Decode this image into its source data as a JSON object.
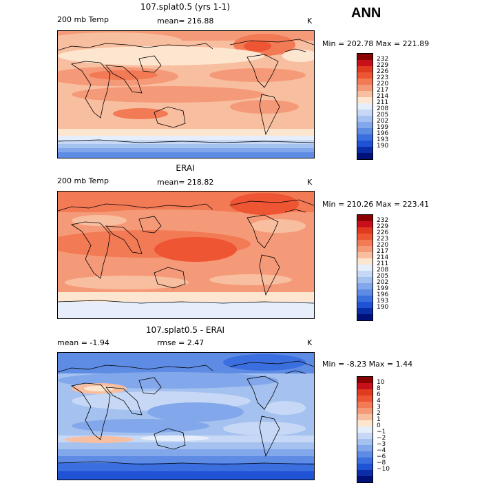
{
  "season": "ANN",
  "panels": [
    {
      "title": "107.splat0.5 (yrs 1-1)",
      "left_label": "200 mb Temp",
      "mid_label": "mean= 216.88",
      "right_label": "K",
      "minmax": "Min = 202.78 Max = 221.89",
      "colorbar_labels": [
        "232",
        "229",
        "226",
        "223",
        "220",
        "217",
        "214",
        "211",
        "208",
        "205",
        "202",
        "199",
        "196",
        "193",
        "190"
      ],
      "colors": [
        "#8b0000",
        "#c8101a",
        "#e03a21",
        "#ee5533",
        "#f27a55",
        "#f59a78",
        "#f8bea0",
        "#fde6d0",
        "#e6eefb",
        "#c6d8f5",
        "#a4c1ef",
        "#82a7ea",
        "#5e8be4",
        "#3b6fe0",
        "#1f52d5",
        "#0b2ea8",
        "#00117a"
      ]
    },
    {
      "title": "ERAI",
      "left_label": "200 mb Temp",
      "mid_label": "mean= 218.82",
      "right_label": "K",
      "minmax": "Min = 210.26 Max = 223.41",
      "colorbar_labels": [
        "232",
        "229",
        "226",
        "223",
        "220",
        "217",
        "214",
        "211",
        "208",
        "205",
        "202",
        "199",
        "196",
        "193",
        "190"
      ],
      "colors": [
        "#8b0000",
        "#c8101a",
        "#e03a21",
        "#ee5533",
        "#f27a55",
        "#f59a78",
        "#f8bea0",
        "#fde6d0",
        "#e6eefb",
        "#c6d8f5",
        "#a4c1ef",
        "#82a7ea",
        "#5e8be4",
        "#3b6fe0",
        "#1f52d5",
        "#0b2ea8",
        "#00117a"
      ]
    },
    {
      "title": "107.splat0.5 - ERAI",
      "left_label": "mean = -1.94",
      "mid_label": "rmse = 2.47",
      "right_label": "K",
      "minmax": "Min = -8.23 Max = 1.44",
      "colorbar_labels": [
        "10",
        "8",
        "6",
        "4",
        "3",
        "2",
        "1",
        "0",
        "−1",
        "−2",
        "−3",
        "−4",
        "−6",
        "−8",
        "−10"
      ],
      "colors": [
        "#8b0000",
        "#c8101a",
        "#e03a21",
        "#ee5533",
        "#f27a55",
        "#f59a78",
        "#f8bea0",
        "#fde6d0",
        "#e6eefb",
        "#c6d8f5",
        "#a4c1ef",
        "#82a7ea",
        "#5e8be4",
        "#3b6fe0",
        "#1f52d5",
        "#0b2ea8",
        "#00117a"
      ]
    }
  ]
}
